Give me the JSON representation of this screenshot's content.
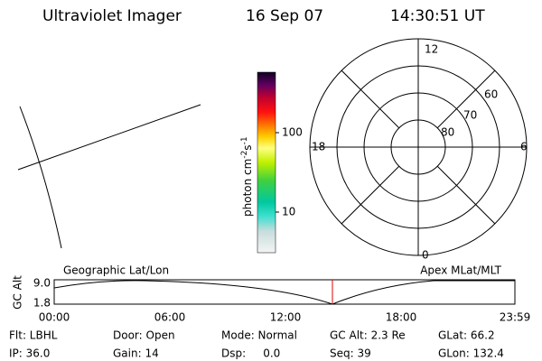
{
  "header": {
    "title": "Ultraviolet Imager",
    "date": "16 Sep 07",
    "time": "14:30:51 UT"
  },
  "colorbar": {
    "unit": [
      "photon cm",
      "-2",
      "s",
      "-1"
    ],
    "ticks": [
      "100",
      "10"
    ]
  },
  "polar": {
    "mlt_labels": [
      "12",
      "18",
      "6",
      "0"
    ],
    "lat_labels": [
      "80",
      "70",
      "60"
    ]
  },
  "timeline": {
    "left_label": "Geographic Lat/Lon",
    "right_label": "Apex MLat/MLT",
    "axis_label": "GC Alt",
    "alt_ticks": [
      "9.0",
      "1.8"
    ],
    "time_ticks": [
      "00:00",
      "06:00",
      "12:00",
      "18:00",
      "23:59"
    ]
  },
  "footer": {
    "rows": [
      [
        "Flt: LBHL",
        "Door: Open",
        "Mode: Normal",
        "GC Alt: 2.3 Re",
        "GLat: 66.2"
      ],
      [
        "IP: 36.0",
        "Gain: 14",
        "Dsp:     0.0",
        "Seq: 39",
        "GLon: 132.4"
      ]
    ]
  }
}
